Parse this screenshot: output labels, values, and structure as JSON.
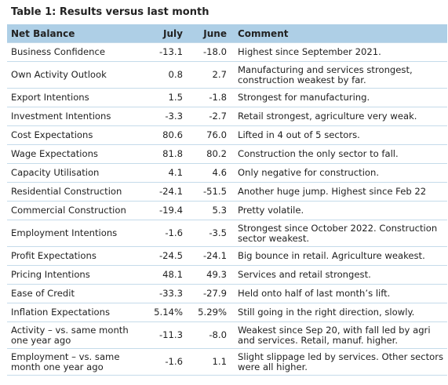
{
  "table": {
    "title": "Table 1: Results versus last month",
    "columns": [
      "Net Balance",
      "July",
      "June",
      "Comment"
    ],
    "rows": [
      {
        "label": "Business Confidence",
        "july": "-13.1",
        "june": "-18.0",
        "comment": "Highest since September 2021."
      },
      {
        "label": "Own Activity Outlook",
        "july": "0.8",
        "june": "2.7",
        "comment": "Manufacturing and services strongest, construction weakest by far."
      },
      {
        "label": "Export Intentions",
        "july": "1.5",
        "june": "-1.8",
        "comment": "Strongest for manufacturing."
      },
      {
        "label": "Investment Intentions",
        "july": "-3.3",
        "june": "-2.7",
        "comment": "Retail strongest, agriculture very weak."
      },
      {
        "label": "Cost Expectations",
        "july": "80.6",
        "june": "76.0",
        "comment": "Lifted in 4 out of 5 sectors."
      },
      {
        "label": "Wage Expectations",
        "july": "81.8",
        "june": "80.2",
        "comment": "Construction the only sector to fall."
      },
      {
        "label": "Capacity Utilisation",
        "july": "4.1",
        "june": "4.6",
        "comment": "Only negative for construction."
      },
      {
        "label": "Residential Construction",
        "july": "-24.1",
        "june": "-51.5",
        "comment": "Another huge jump. Highest since Feb 22"
      },
      {
        "label": "Commercial Construction",
        "july": "-19.4",
        "june": "5.3",
        "comment": "Pretty volatile."
      },
      {
        "label": "Employment Intentions",
        "july": "-1.6",
        "june": "-3.5",
        "comment": "Strongest since October 2022. Construction sector weakest."
      },
      {
        "label": "Profit Expectations",
        "july": "-24.5",
        "june": "-24.1",
        "comment": "Big bounce in retail. Agriculture weakest."
      },
      {
        "label": "Pricing Intentions",
        "july": "48.1",
        "june": "49.3",
        "comment": "Services and retail strongest."
      },
      {
        "label": "Ease of Credit",
        "july": "-33.3",
        "june": "-27.9",
        "comment": "Held onto half of last month’s lift."
      },
      {
        "label": "Inflation Expectations",
        "july": "5.14%",
        "june": "5.29%",
        "comment": "Still going in the right direction, slowly."
      },
      {
        "label": "Activity – vs. same month one year ago",
        "july": "-11.3",
        "june": "-8.0",
        "comment": "Weakest since Sep 20, with fall led by agri and services. Retail, manuf. higher."
      },
      {
        "label": "Employment – vs. same month one year ago",
        "july": "-1.6",
        "june": "1.1",
        "comment": "Slight slippage led by services. Other sectors were all higher."
      }
    ]
  },
  "colors": {
    "header_bg": "#aecfe6",
    "row_rule": "#c5dbea"
  }
}
